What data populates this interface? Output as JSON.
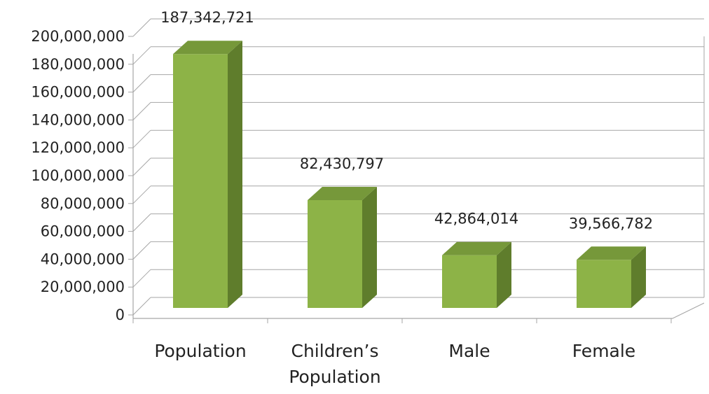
{
  "chart_data": {
    "type": "bar",
    "style": "3d-column",
    "categories": [
      "Population",
      "Children’s Population",
      "Male",
      "Female"
    ],
    "category_label_lines": [
      [
        "Population"
      ],
      [
        "Children’s",
        "Population"
      ],
      [
        "Male"
      ],
      [
        "Female"
      ]
    ],
    "values": [
      187342721,
      82430797,
      42864014,
      39566782
    ],
    "data_labels": [
      "187,342,721",
      "82,430,797",
      "42,864,014",
      "39,566,782"
    ],
    "y_ticks": [
      0,
      20000000,
      40000000,
      60000000,
      80000000,
      100000000,
      120000000,
      140000000,
      160000000,
      180000000,
      200000000
    ],
    "y_tick_labels": [
      "0",
      "20,000,000",
      "40,000,000",
      "60,000,000",
      "80,000,000",
      "100,000,000",
      "120,000,000",
      "140,000,000",
      "160,000,000",
      "180,000,000",
      "200,000,000"
    ],
    "ylim": [
      0,
      200000000
    ],
    "title": "",
    "xlabel": "",
    "ylabel": "",
    "grid": true,
    "legend": "none",
    "colors": {
      "bar_front": "#8db347",
      "bar_side": "#5f7d2c",
      "bar_top": "#76983a",
      "grid": "#a6a6a6",
      "text": "#222222"
    }
  }
}
